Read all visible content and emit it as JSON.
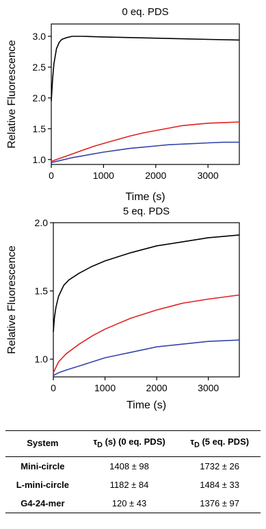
{
  "chart_data": [
    {
      "type": "line",
      "title": "0 eq. PDS",
      "xlabel": "Time (s)",
      "ylabel": "Relative Fluorescence",
      "xlim": [
        0,
        3600
      ],
      "ylim": [
        0.92,
        3.2
      ],
      "xticks": [
        0,
        1000,
        2000,
        3000
      ],
      "xtick_labels": [
        "0",
        "1000",
        "2000",
        "3000"
      ],
      "yticks": [
        1.0,
        1.5,
        2.0,
        2.5,
        3.0
      ],
      "ytick_labels": [
        "1.0",
        "1.5",
        "2.0",
        "2.5",
        "3.0"
      ],
      "grid": false,
      "series": [
        {
          "color": "#000000",
          "x": [
            0,
            25,
            50,
            100,
            150,
            200,
            300,
            400,
            600,
            1000,
            1500,
            2000,
            2500,
            3000,
            3600
          ],
          "y": [
            1.95,
            2.3,
            2.55,
            2.8,
            2.9,
            2.95,
            2.98,
            3.0,
            3.0,
            2.99,
            2.98,
            2.97,
            2.96,
            2.95,
            2.94
          ]
        },
        {
          "color": "#e02020",
          "x": [
            0,
            200,
            400,
            600,
            800,
            1000,
            1250,
            1500,
            1750,
            2000,
            2250,
            2500,
            2750,
            3000,
            3300,
            3600
          ],
          "y": [
            0.97,
            1.03,
            1.09,
            1.15,
            1.21,
            1.26,
            1.32,
            1.38,
            1.43,
            1.47,
            1.51,
            1.55,
            1.57,
            1.59,
            1.6,
            1.61
          ]
        },
        {
          "color": "#3344aa",
          "x": [
            0,
            200,
            400,
            600,
            800,
            1000,
            1250,
            1500,
            1750,
            2000,
            2250,
            2500,
            2750,
            3000,
            3300,
            3600
          ],
          "y": [
            0.95,
            0.99,
            1.03,
            1.06,
            1.09,
            1.12,
            1.15,
            1.18,
            1.2,
            1.22,
            1.24,
            1.25,
            1.26,
            1.27,
            1.28,
            1.28
          ]
        }
      ]
    },
    {
      "type": "line",
      "title": "5 eq. PDS",
      "xlabel": "Time (s)",
      "ylabel": "Relative Fluorescence",
      "xlim": [
        0,
        3600
      ],
      "ylim": [
        0.87,
        2.0
      ],
      "xticks": [
        0,
        1000,
        2000,
        3000
      ],
      "xtick_labels": [
        "0",
        "1000",
        "2000",
        "3000"
      ],
      "yticks": [
        1.0,
        1.5,
        2.0
      ],
      "ytick_labels": [
        "1.0",
        "1.5",
        "2.0"
      ],
      "grid": false,
      "series": [
        {
          "color": "#000000",
          "x": [
            0,
            20,
            50,
            100,
            200,
            300,
            500,
            750,
            1000,
            1500,
            2000,
            2500,
            3000,
            3600
          ],
          "y": [
            1.2,
            1.3,
            1.38,
            1.46,
            1.54,
            1.58,
            1.63,
            1.68,
            1.72,
            1.78,
            1.83,
            1.86,
            1.89,
            1.91
          ]
        },
        {
          "color": "#e02020",
          "x": [
            0,
            100,
            250,
            500,
            750,
            1000,
            1250,
            1500,
            1750,
            2000,
            2500,
            3000,
            3600
          ],
          "y": [
            0.9,
            0.98,
            1.04,
            1.11,
            1.17,
            1.22,
            1.26,
            1.3,
            1.33,
            1.36,
            1.41,
            1.44,
            1.47
          ]
        },
        {
          "color": "#3344aa",
          "x": [
            0,
            100,
            250,
            500,
            750,
            1000,
            1250,
            1500,
            1750,
            2000,
            2500,
            3000,
            3600
          ],
          "y": [
            0.88,
            0.9,
            0.92,
            0.95,
            0.98,
            1.01,
            1.03,
            1.05,
            1.07,
            1.09,
            1.11,
            1.13,
            1.14
          ]
        }
      ]
    }
  ],
  "table": {
    "headers": [
      "System",
      "τD (s) (0 eq. PDS)",
      "τD (5 eq. PDS)"
    ],
    "header_parts": [
      {
        "text": "System"
      },
      {
        "tau": "τ",
        "sub": "D",
        "rest": " (s) (0 eq. PDS)"
      },
      {
        "tau": "τ",
        "sub": "D",
        "rest": " (5 eq. PDS)"
      }
    ],
    "rows": [
      {
        "system": "Mini-circle",
        "pds0": "1408 ± 98",
        "pds5": "1732 ± 26"
      },
      {
        "system": "L-mini-circle",
        "pds0": "1182 ± 84",
        "pds5": "1484 ± 33"
      },
      {
        "system": "G4-24-mer",
        "pds0": "120 ± 43",
        "pds5": "1376 ± 97"
      }
    ]
  }
}
